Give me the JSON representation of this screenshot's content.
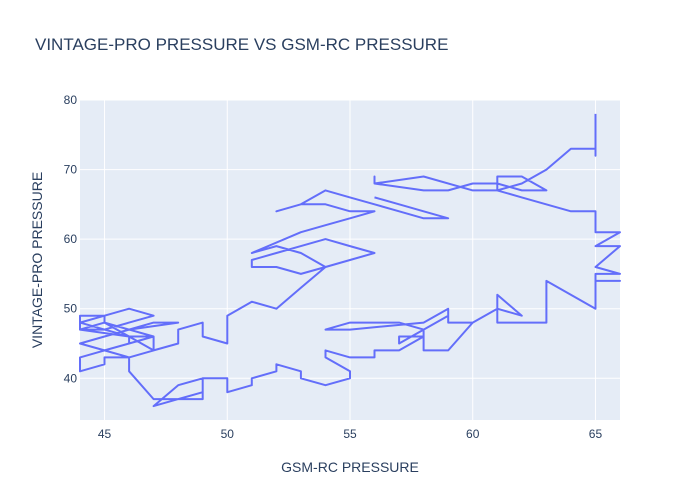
{
  "chart_data": {
    "type": "line",
    "title": "VINTAGE-PRO PRESSURE VS GSM-RC PRESSURE",
    "xlabel": "GSM-RC PRESSURE",
    "ylabel": "VINTAGE-PRO PRESSURE",
    "xlim": [
      44,
      66
    ],
    "ylim": [
      34,
      80
    ],
    "xticks": [
      45,
      50,
      55,
      60,
      65
    ],
    "yticks": [
      40,
      50,
      60,
      70,
      80
    ],
    "grid": true,
    "line_color": "#636efa",
    "plot_bg": "#e5ecf6",
    "series": [
      {
        "x": [
          65,
          65,
          65,
          65,
          64,
          63,
          63,
          62,
          62,
          61,
          61,
          62,
          63,
          62,
          61,
          60,
          59,
          58,
          56,
          56,
          56,
          58,
          60,
          61,
          62,
          62,
          64,
          65,
          65,
          66,
          65,
          66,
          65,
          66,
          65,
          65,
          66,
          65,
          65,
          63,
          63,
          62,
          61,
          61,
          61,
          62,
          61,
          60,
          59,
          59,
          58,
          55,
          54,
          54,
          55,
          56,
          57,
          58,
          58,
          59,
          60,
          59,
          59,
          57,
          57,
          58,
          57,
          56,
          56,
          55,
          54,
          54,
          55,
          55,
          54,
          53,
          53,
          52,
          52,
          51,
          51,
          50,
          50,
          49,
          49,
          48,
          48,
          49,
          49,
          48,
          47,
          47,
          48,
          47,
          46,
          46,
          45,
          45,
          44,
          44,
          45,
          46,
          46,
          45,
          45,
          44,
          44,
          45,
          46,
          47,
          46,
          45,
          44,
          45,
          46,
          47,
          46,
          45,
          44,
          45,
          46,
          47,
          48,
          46,
          45,
          44,
          45,
          46,
          47,
          46,
          44,
          45,
          46,
          47,
          47,
          47,
          48,
          48,
          49,
          49,
          50,
          50,
          51,
          52,
          53,
          54,
          55,
          56,
          55,
          54,
          53,
          52,
          51,
          51,
          52,
          53,
          54,
          53,
          52,
          51,
          53,
          54,
          55,
          56,
          55,
          54,
          53,
          52,
          53,
          54,
          55,
          56,
          57,
          57,
          58,
          59,
          58,
          57,
          56
        ],
        "y": [
          78,
          74,
          72,
          73,
          73,
          70,
          70,
          68,
          68,
          67,
          69,
          69,
          67,
          67,
          68,
          68,
          67,
          67,
          68,
          69,
          68,
          69,
          67,
          67,
          66,
          66,
          64,
          64,
          61,
          61,
          59,
          59,
          56,
          55,
          55,
          54,
          54,
          54,
          50,
          54,
          48,
          48,
          48,
          50,
          52,
          49,
          50,
          48,
          48,
          50,
          48,
          47,
          47,
          47,
          48,
          48,
          48,
          47,
          44,
          44,
          48,
          48,
          49,
          45,
          46,
          46,
          44,
          44,
          43,
          43,
          44,
          43,
          41,
          40,
          39,
          40,
          41,
          42,
          41,
          40,
          39,
          38,
          40,
          40,
          37,
          37,
          37,
          38,
          40,
          39,
          36,
          36,
          37,
          37,
          41,
          43,
          43,
          42,
          41,
          43,
          44,
          45,
          46,
          48,
          49,
          49,
          47,
          47,
          48,
          49,
          50,
          49,
          48,
          47,
          46,
          46,
          45,
          44,
          45,
          46,
          47,
          48,
          48,
          47,
          46,
          45,
          44,
          43,
          44,
          46,
          47,
          48,
          47,
          46,
          45,
          44,
          45,
          47,
          48,
          46,
          45,
          49,
          51,
          50,
          53,
          56,
          57,
          58,
          59,
          60,
          59,
          58,
          57,
          56,
          56,
          55,
          56,
          58,
          59,
          58,
          61,
          62,
          63,
          64,
          64,
          65,
          65,
          64,
          65,
          67,
          66,
          65,
          64,
          64,
          63,
          63,
          64,
          65,
          66
        ]
      }
    ]
  }
}
